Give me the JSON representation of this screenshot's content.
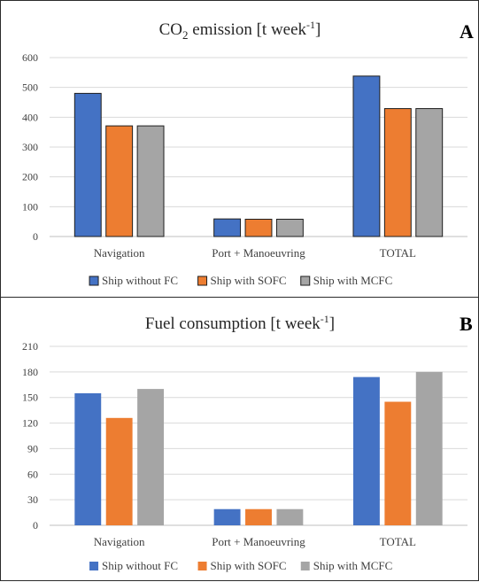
{
  "chart_data": [
    {
      "type": "bar",
      "panel_letter": "A",
      "title_main": "CO",
      "title_sub": "2",
      "title_rest": " emission [t week",
      "title_sup": "-1",
      "title_end": "]",
      "categories": [
        "Navigation",
        "Port + Manoeuvring",
        "TOTAL"
      ],
      "yticks": [
        0,
        100,
        200,
        300,
        400,
        500,
        600
      ],
      "ylim": [
        0,
        600
      ],
      "grid": true,
      "legend_position": "bottom",
      "series": [
        {
          "name": "Ship without FC",
          "color": "#4472c4",
          "values": [
            480,
            59,
            538
          ]
        },
        {
          "name": "Ship with SOFC",
          "color": "#ed7d31",
          "values": [
            371,
            58,
            429
          ]
        },
        {
          "name": "Ship with MCFC",
          "color": "#a5a5a5",
          "values": [
            371,
            58,
            429
          ]
        }
      ]
    },
    {
      "type": "bar",
      "panel_letter": "B",
      "title_main": "Fuel consumption [t week",
      "title_sup": "-1",
      "title_end": "]",
      "categories": [
        "Navigation",
        "Port + Manoeuvring",
        "TOTAL"
      ],
      "yticks": [
        0,
        30,
        60,
        90,
        120,
        150,
        180,
        210
      ],
      "ylim": [
        0,
        210
      ],
      "grid": true,
      "legend_position": "bottom",
      "series": [
        {
          "name": "Ship without FC",
          "color": "#4472c4",
          "values": [
            155,
            19,
            174
          ]
        },
        {
          "name": "Ship with SOFC",
          "color": "#ed7d31",
          "values": [
            126,
            19,
            145
          ]
        },
        {
          "name": "Ship with MCFC",
          "color": "#a5a5a5",
          "values": [
            160,
            19,
            180
          ]
        }
      ]
    }
  ]
}
